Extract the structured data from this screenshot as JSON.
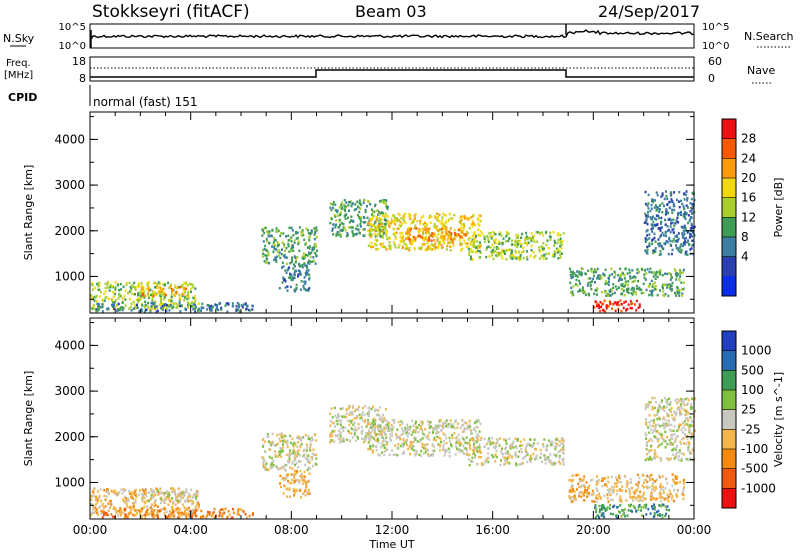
{
  "header": {
    "radar": "Stokkseyri (fitACF)",
    "beam": "Beam 03",
    "date": "24/Sep/2017"
  },
  "top_panels": {
    "nsky_label": "N.Sky",
    "nsky_ticks": [
      "10^5",
      "10^0"
    ],
    "nsearch_label": "N.Search",
    "nsearch_ticks": [
      "10^5",
      "10^0"
    ],
    "freq_label_1": "Freq.",
    "freq_label_2": "[MHz]",
    "freq_ticks": [
      "18",
      "8"
    ],
    "nave_label": "Nave",
    "nave_ticks": [
      "60",
      "0"
    ],
    "cpid_label": "CPID",
    "cpid_value": "normal (fast) 151"
  },
  "chart_data": [
    {
      "type": "heatmap",
      "name": "power",
      "xlabel": "Time UT",
      "ylabel": "Slant Range [km]",
      "x_ticks": [
        "00:00",
        "04:00",
        "08:00",
        "12:00",
        "16:00",
        "20:00",
        "00:00"
      ],
      "y_ticks": [
        "1000",
        "2000",
        "3000",
        "4000"
      ],
      "ylim": [
        200,
        4600
      ],
      "xlim_hours": [
        0,
        24
      ],
      "colorbar_label": "Power [dB]",
      "colorbar_ticks": [
        "28",
        "24",
        "20",
        "16",
        "12",
        "8",
        "4"
      ],
      "colorbar_colors": [
        "#ee1111",
        "#f75a00",
        "#fb9a0c",
        "#f2d80a",
        "#a9cf2c",
        "#3f9c56",
        "#3d7fa3",
        "#2b3fb0",
        "#0a2de8"
      ],
      "regions": [
        {
          "t0": 0.0,
          "t1": 4.3,
          "r0": 300,
          "r1": 900,
          "level": 4
        },
        {
          "t0": 2.0,
          "t1": 3.8,
          "r0": 600,
          "r1": 800,
          "level": 6
        },
        {
          "t0": 0.2,
          "t1": 6.5,
          "r0": 250,
          "r1": 450,
          "level": 2
        },
        {
          "t0": 6.8,
          "t1": 9.0,
          "r0": 1300,
          "r1": 2100,
          "level": 3
        },
        {
          "t0": 7.5,
          "t1": 8.7,
          "r0": 700,
          "r1": 1300,
          "level": 2
        },
        {
          "t0": 9.5,
          "t1": 11.8,
          "r0": 1900,
          "r1": 2700,
          "level": 3
        },
        {
          "t0": 11.0,
          "t1": 15.5,
          "r0": 1600,
          "r1": 2400,
          "level": 5
        },
        {
          "t0": 12.5,
          "t1": 15.0,
          "r0": 1800,
          "r1": 2100,
          "level": 6
        },
        {
          "t0": 15.0,
          "t1": 18.8,
          "r0": 1400,
          "r1": 2000,
          "level": 4
        },
        {
          "t0": 19.0,
          "t1": 23.6,
          "r0": 600,
          "r1": 1200,
          "level": 3
        },
        {
          "t0": 20.0,
          "t1": 22.0,
          "r0": 250,
          "r1": 500,
          "level": 8
        },
        {
          "t0": 22.0,
          "t1": 24.0,
          "r0": 1500,
          "r1": 2900,
          "level": 2
        }
      ]
    },
    {
      "type": "heatmap",
      "name": "velocity",
      "xlabel": "Time UT",
      "ylabel": "Slant Range [km]",
      "x_ticks": [
        "00:00",
        "04:00",
        "08:00",
        "12:00",
        "16:00",
        "20:00",
        "00:00"
      ],
      "y_ticks": [
        "1000",
        "2000",
        "3000",
        "4000"
      ],
      "ylim": [
        200,
        4600
      ],
      "xlim_hours": [
        0,
        24
      ],
      "colorbar_label": "Velocity [m s^-1]",
      "colorbar_ticks": [
        "1000",
        "500",
        "100",
        "25",
        "-25",
        "-100",
        "-500",
        "-1000"
      ],
      "colorbar_colors": [
        "#2040c0",
        "#2a6ab0",
        "#3f9c56",
        "#80c040",
        "#c8c8c0",
        "#f2b74a",
        "#f58a10",
        "#f05a10",
        "#ee1111"
      ],
      "regions": [
        {
          "t0": 0.0,
          "t1": 4.3,
          "r0": 300,
          "r1": 900,
          "level": 3
        },
        {
          "t0": 2.0,
          "t1": 4.2,
          "r0": 600,
          "r1": 850,
          "level": 4
        },
        {
          "t0": 0.2,
          "t1": 6.5,
          "r0": 250,
          "r1": 450,
          "level": 2
        },
        {
          "t0": 6.8,
          "t1": 9.0,
          "r0": 1300,
          "r1": 2100,
          "level": 4
        },
        {
          "t0": 7.5,
          "t1": 8.7,
          "r0": 700,
          "r1": 1300,
          "level": 3
        },
        {
          "t0": 9.5,
          "t1": 11.8,
          "r0": 1900,
          "r1": 2700,
          "level": 4
        },
        {
          "t0": 11.0,
          "t1": 15.5,
          "r0": 1600,
          "r1": 2400,
          "level": 4
        },
        {
          "t0": 15.0,
          "t1": 18.8,
          "r0": 1400,
          "r1": 2000,
          "level": 4
        },
        {
          "t0": 19.0,
          "t1": 23.6,
          "r0": 600,
          "r1": 1200,
          "level": 3
        },
        {
          "t0": 20.0,
          "t1": 23.0,
          "r0": 250,
          "r1": 550,
          "level": 6
        },
        {
          "t0": 22.0,
          "t1": 24.0,
          "r0": 1500,
          "r1": 2900,
          "level": 4
        }
      ]
    }
  ]
}
